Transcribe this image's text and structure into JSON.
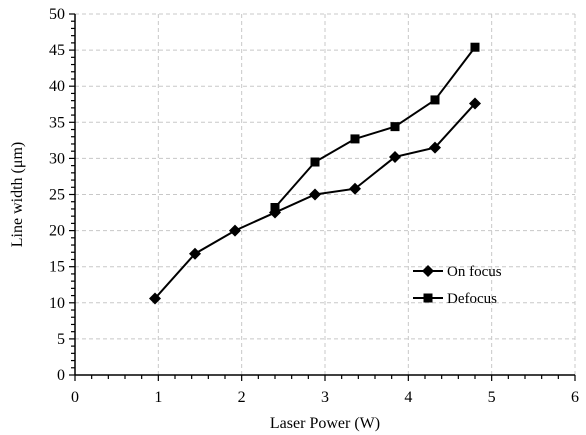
{
  "chart_data": {
    "type": "line",
    "title": "",
    "xlabel": "Laser Power (W)",
    "ylabel": "Line width (μm)",
    "xlim": [
      0,
      6
    ],
    "ylim": [
      0,
      50
    ],
    "x_ticks": [
      0,
      1,
      2,
      3,
      4,
      5,
      6
    ],
    "y_ticks": [
      0,
      5,
      10,
      15,
      20,
      25,
      30,
      35,
      40,
      45,
      50
    ],
    "grid": true,
    "legend_position": "right",
    "series": [
      {
        "name": "On focus",
        "marker": "diamond",
        "color": "#000000",
        "points": [
          {
            "x": 0.96,
            "y": 10.6
          },
          {
            "x": 1.44,
            "y": 16.8
          },
          {
            "x": 1.92,
            "y": 20.0
          },
          {
            "x": 2.4,
            "y": 22.5
          },
          {
            "x": 2.88,
            "y": 25.0
          },
          {
            "x": 3.36,
            "y": 25.8
          },
          {
            "x": 3.84,
            "y": 30.2
          },
          {
            "x": 4.32,
            "y": 31.5
          },
          {
            "x": 4.8,
            "y": 37.6
          }
        ]
      },
      {
        "name": "Defocus",
        "marker": "square",
        "color": "#000000",
        "points": [
          {
            "x": 2.4,
            "y": 23.2
          },
          {
            "x": 2.88,
            "y": 29.5
          },
          {
            "x": 3.36,
            "y": 32.7
          },
          {
            "x": 3.84,
            "y": 34.4
          },
          {
            "x": 4.32,
            "y": 38.1
          },
          {
            "x": 4.8,
            "y": 45.4
          }
        ]
      }
    ]
  }
}
